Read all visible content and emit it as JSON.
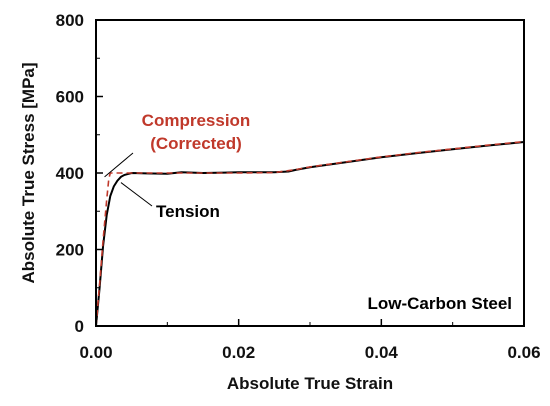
{
  "chart_data": {
    "type": "line",
    "xlabel": "Absolute True Strain",
    "ylabel": "Absolute True Stress [MPa]",
    "xlim": [
      0,
      0.06
    ],
    "ylim": [
      0,
      800
    ],
    "x_ticks": [
      0,
      0.02,
      0.04,
      0.06
    ],
    "x_tick_labels": [
      "0.00",
      "0.02",
      "0.04",
      "0.06"
    ],
    "y_ticks": [
      0,
      200,
      400,
      600,
      800
    ],
    "y_tick_labels": [
      "0",
      "200",
      "400",
      "600",
      "800"
    ],
    "grid": false,
    "series": [
      {
        "name": "Tension",
        "color": "#000000",
        "style": "solid",
        "x": [
          0,
          0.0005,
          0.001,
          0.0015,
          0.002,
          0.0025,
          0.003,
          0.0035,
          0.004,
          0.005,
          0.007,
          0.01,
          0.012,
          0.015,
          0.018,
          0.02,
          0.025,
          0.027,
          0.028,
          0.03,
          0.035,
          0.04,
          0.045,
          0.05,
          0.055,
          0.06
        ],
        "y": [
          0,
          100,
          210,
          290,
          340,
          365,
          380,
          390,
          395,
          400,
          399,
          398,
          402,
          400,
          401,
          402,
          402,
          404,
          408,
          415,
          428,
          441,
          452,
          462,
          472,
          481
        ]
      },
      {
        "name": "Compression (Corrected)",
        "color": "#c0392b",
        "style": "dashed",
        "x": [
          0,
          0.0005,
          0.001,
          0.0015,
          0.0018,
          0.002,
          0.003,
          0.005,
          0.01,
          0.015,
          0.02,
          0.025,
          0.028,
          0.03,
          0.035,
          0.04,
          0.045,
          0.05,
          0.055,
          0.06
        ],
        "y": [
          0,
          110,
          225,
          330,
          385,
          400,
          400,
          400,
          400,
          400,
          400,
          401,
          409,
          416,
          429,
          442,
          453,
          463,
          473,
          482
        ]
      }
    ],
    "annotations": {
      "compression_line1": "Compression",
      "compression_line2": "(Corrected)",
      "tension": "Tension",
      "material": "Low-Carbon Steel"
    }
  }
}
